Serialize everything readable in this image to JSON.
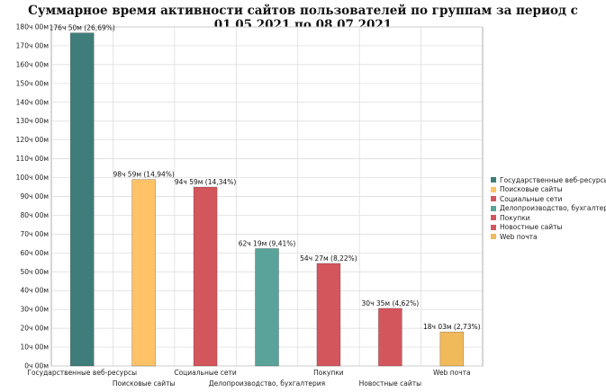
{
  "chart_data": {
    "type": "bar",
    "title": "Суммарное время активности сайтов пользователей по группам за период с 01.05.2021 по 08.07.2021",
    "xlabel": "",
    "ylabel": "",
    "ylim": [
      0,
      180
    ],
    "y_ticks": [
      "0ч 00м",
      "10ч 00м",
      "20ч 00м",
      "30ч 00м",
      "40ч 00м",
      "50ч 00м",
      "60ч 00м",
      "70ч 00м",
      "80ч 00м",
      "90ч 00м",
      "100ч 00м",
      "110ч 00м",
      "120ч 00м",
      "130ч 00м",
      "140ч 00м",
      "150ч 00м",
      "160ч 00м",
      "170ч 00м",
      "180ч 00м"
    ],
    "grid": true,
    "legend_position": "right",
    "categories": [
      "Государственные веб-ресурсы",
      "Поисковые сайты",
      "Социальные сети",
      "Делопроизводство, бухгалтерия",
      "Покупки",
      "Новостные сайты",
      "Web почта"
    ],
    "values": [
      176.833,
      98.983,
      94.983,
      62.317,
      54.45,
      30.583,
      18.05
    ],
    "data_labels": [
      "176ч 50м (26,69%)",
      "98ч 59м (14,94%)",
      "94ч 59м (14,34%)",
      "62ч 19м (9,41%)",
      "54ч 27м (8,22%)",
      "30ч 35м (4,62%)",
      "18ч 03м (2,73%)"
    ],
    "colors": [
      "#3f7d7a",
      "#ffc266",
      "#d4565d",
      "#5aa39a",
      "#d4565d",
      "#d4565d",
      "#f0b95a"
    ],
    "legend": [
      "Государственные веб-ресурсы",
      "Поисковые сайты",
      "Социальные сети",
      "Делопроизводство, бухгалтерия",
      "Покупки",
      "Новостные сайты",
      "Web почта"
    ]
  }
}
